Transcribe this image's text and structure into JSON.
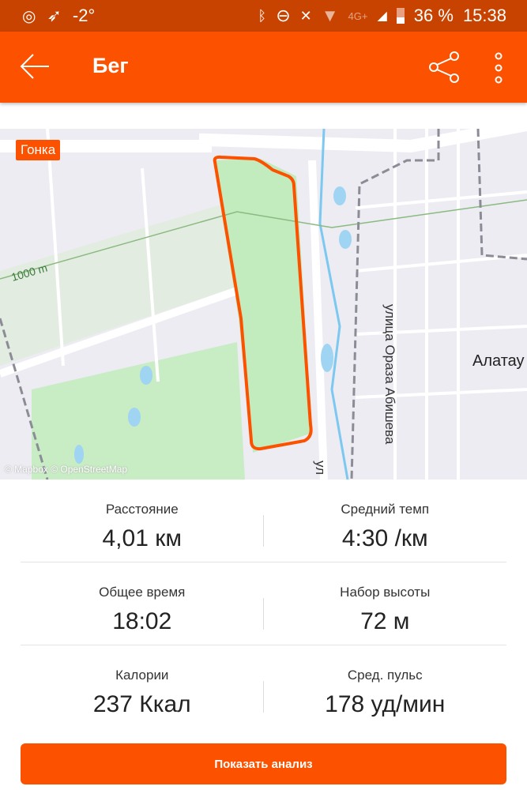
{
  "status_bar": {
    "temperature": "-2°",
    "battery": "36 %",
    "time": "15:38",
    "network": "4G+"
  },
  "app_bar": {
    "title": "Бег"
  },
  "map": {
    "badge": "Гонка",
    "attribution": "© Mapbox © OpenStreetMap",
    "labels": {
      "contour": "1000 m",
      "street": "улица Ораза Абишева",
      "district": "Алатау",
      "street_short": "ул"
    },
    "route_color": "#fc5200"
  },
  "stats": [
    [
      {
        "label": "Расстояние",
        "value": "4,01 км"
      },
      {
        "label": "Средний темп",
        "value": "4:30 /км"
      }
    ],
    [
      {
        "label": "Общее время",
        "value": "18:02"
      },
      {
        "label": "Набор высоты",
        "value": "72 м"
      }
    ],
    [
      {
        "label": "Калории",
        "value": "237 Ккал"
      },
      {
        "label": "Сред. пульс",
        "value": "178 уд/мин"
      }
    ]
  ],
  "action_button": "Показать анализ"
}
